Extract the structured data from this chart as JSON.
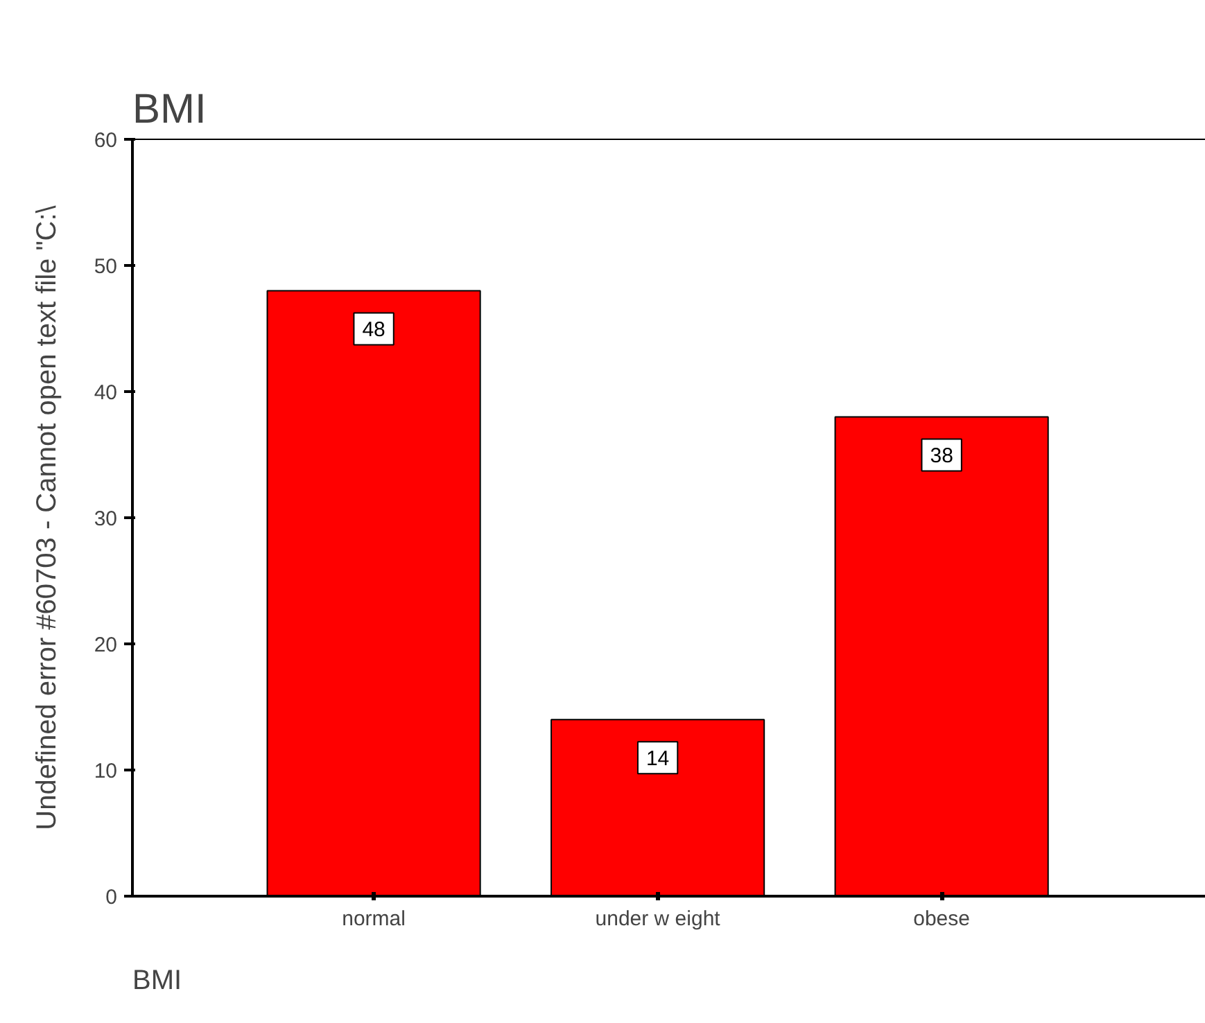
{
  "chart_data": {
    "type": "bar",
    "title": "BMI",
    "xlabel": "BMI",
    "ylabel": "Undefined error #60703 - Cannot open text file \"C:\\",
    "categories": [
      "normal",
      "under w eight",
      "obese"
    ],
    "values": [
      48,
      14,
      38
    ],
    "color": "#ff0000",
    "ylim": [
      0,
      60
    ],
    "yticks": [
      0,
      10,
      20,
      30,
      40,
      50,
      60
    ],
    "grid": false,
    "data_labels": true
  }
}
